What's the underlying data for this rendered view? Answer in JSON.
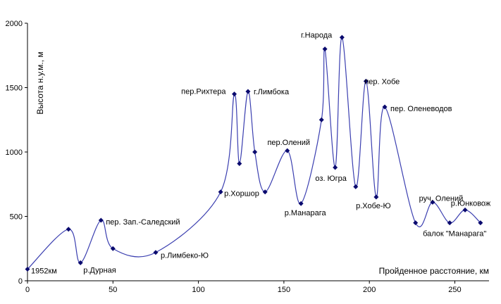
{
  "chart_data": {
    "type": "line",
    "title": "",
    "xlabel": "Пройденное расстояние, км",
    "ylabel": "Высота н.у.м., м",
    "xlim": [
      0,
      270
    ],
    "ylim": [
      0,
      2000
    ],
    "xticks": [
      0,
      50,
      100,
      150,
      200,
      250
    ],
    "yticks": [
      0,
      500,
      1000,
      1500,
      2000
    ],
    "grid": false,
    "legend": "none",
    "colors": {
      "line": "#3b3fb0",
      "marker": "#0a0a6e",
      "axis": "#000000"
    },
    "points": [
      {
        "x": 0,
        "y": 90,
        "label": "1952км"
      },
      {
        "x": 24,
        "y": 400,
        "label": ""
      },
      {
        "x": 31,
        "y": 140,
        "label": "р.Дурная"
      },
      {
        "x": 43,
        "y": 470,
        "label": "пер. Зап.-Саледский"
      },
      {
        "x": 50,
        "y": 250,
        "label": ""
      },
      {
        "x": 75,
        "y": 220,
        "label": "р.Лимбеко-Ю"
      },
      {
        "x": 113,
        "y": 690,
        "label": "р.Хоршор"
      },
      {
        "x": 121,
        "y": 1450,
        "label": "пер.Рихтера"
      },
      {
        "x": 124,
        "y": 910,
        "label": ""
      },
      {
        "x": 129,
        "y": 1470,
        "label": "г.Лимбока"
      },
      {
        "x": 133,
        "y": 1000,
        "label": ""
      },
      {
        "x": 139,
        "y": 690,
        "label": ""
      },
      {
        "x": 152,
        "y": 1010,
        "label": "пер.Олений"
      },
      {
        "x": 160,
        "y": 600,
        "label": "р.Манарага"
      },
      {
        "x": 172,
        "y": 1250,
        "label": ""
      },
      {
        "x": 174,
        "y": 1800,
        "label": "г.Народа"
      },
      {
        "x": 180,
        "y": 880,
        "label": "оз. Югра"
      },
      {
        "x": 184,
        "y": 1890,
        "label": ""
      },
      {
        "x": 192,
        "y": 730,
        "label": ""
      },
      {
        "x": 198,
        "y": 1550,
        "label": "пер. Хобе"
      },
      {
        "x": 204,
        "y": 650,
        "label": "р.Хобе-Ю"
      },
      {
        "x": 209,
        "y": 1350,
        "label": "пер. Оленеводов"
      },
      {
        "x": 227,
        "y": 450,
        "label": ""
      },
      {
        "x": 237,
        "y": 610,
        "label": "руч. Олений"
      },
      {
        "x": 247,
        "y": 450,
        "label": "балок \"Манарага\""
      },
      {
        "x": 256,
        "y": 550,
        "label": "р.Юнковож"
      },
      {
        "x": 265,
        "y": 450,
        "label": ""
      }
    ]
  }
}
